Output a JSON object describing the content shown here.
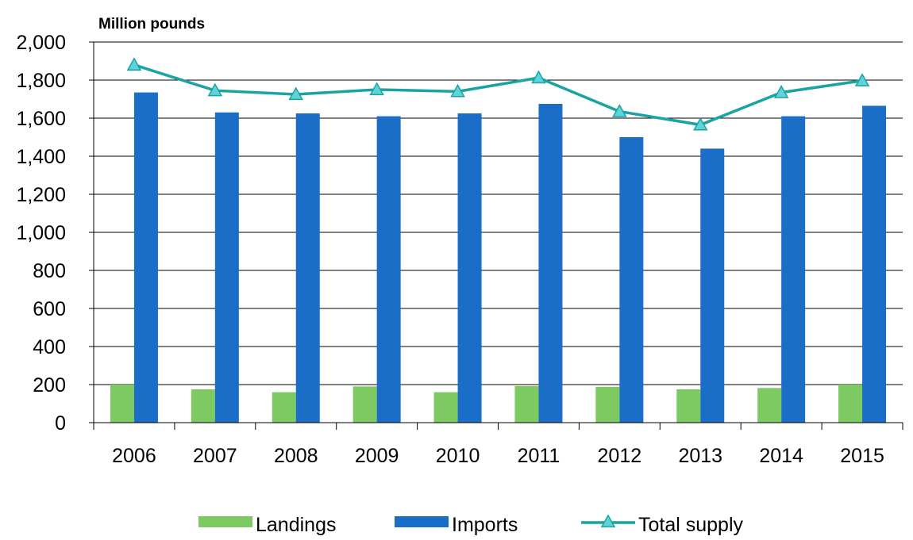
{
  "chart_data": {
    "type": "bar",
    "ylabel": "Million pounds",
    "ylim": [
      0,
      2000
    ],
    "yticks": [
      0,
      200,
      400,
      600,
      800,
      1000,
      1200,
      1400,
      1600,
      1800,
      2000
    ],
    "yticklabels": [
      "0",
      "200",
      "400",
      "600",
      "800",
      "1,000",
      "1,200",
      "1,400",
      "1,600",
      "1,800",
      "2,000"
    ],
    "categories": [
      "2006",
      "2007",
      "2008",
      "2009",
      "2010",
      "2011",
      "2012",
      "2013",
      "2014",
      "2015"
    ],
    "grid": true,
    "legend_position": "bottom",
    "series": [
      {
        "name": "Landings",
        "kind": "bar",
        "color": "#7dc962",
        "values": [
          200,
          175,
          160,
          190,
          160,
          192,
          188,
          175,
          182,
          200
        ]
      },
      {
        "name": "Imports",
        "kind": "bar",
        "color": "#1a6ec8",
        "values": [
          1735,
          1630,
          1625,
          1610,
          1625,
          1675,
          1500,
          1440,
          1610,
          1665
        ]
      },
      {
        "name": "Total supply",
        "kind": "line",
        "marker": "triangle",
        "color": "#1aa3a3",
        "marker_fill": "#5fd3d8",
        "values": [
          1880,
          1745,
          1725,
          1750,
          1740,
          1812,
          1635,
          1565,
          1735,
          1797
        ]
      }
    ]
  }
}
